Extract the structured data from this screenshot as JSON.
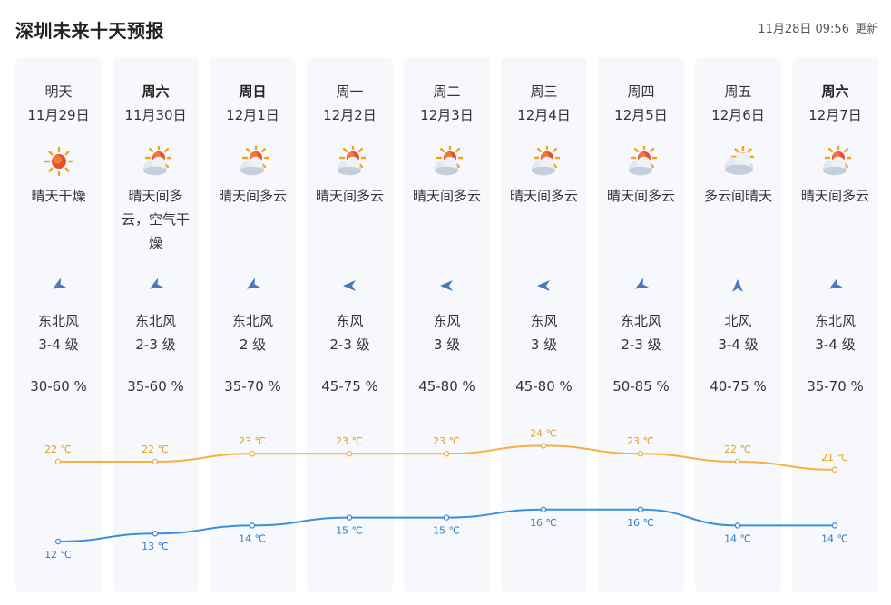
{
  "header": {
    "title": "深圳未来十天预报",
    "update_time": "11月28日 09:56",
    "update_label": "更新"
  },
  "colors": {
    "high_line": "#f5b041",
    "low_line": "#3b8fe0",
    "high_label": "#e0a020",
    "low_label": "#2a7fd0",
    "column_bg": "#f6f8fc"
  },
  "days": [
    {
      "weekday": "明天",
      "weekday_bold": false,
      "date": "11月29日",
      "icon": "sunny-icon",
      "desc": "晴天干燥",
      "wind_icon": "wind-arrow-northeast-icon",
      "wind_dir": "东北风",
      "wind_level": "3-4 级",
      "humidity": "30-60 %",
      "high": 22,
      "high_label": "22 ℃",
      "low": 12,
      "low_label": "12 ℃"
    },
    {
      "weekday": "周六",
      "weekday_bold": true,
      "date": "11月30日",
      "icon": "partly-cloudy-icon",
      "desc": "晴天间多云，空气干燥",
      "wind_icon": "wind-arrow-northeast-icon",
      "wind_dir": "东北风",
      "wind_level": "2-3 级",
      "humidity": "35-60 %",
      "high": 22,
      "high_label": "22 ℃",
      "low": 13,
      "low_label": "13 ℃"
    },
    {
      "weekday": "周日",
      "weekday_bold": true,
      "date": "12月1日",
      "icon": "partly-cloudy-icon",
      "desc": "晴天间多云",
      "wind_icon": "wind-arrow-northeast-icon",
      "wind_dir": "东北风",
      "wind_level": "2 级",
      "humidity": "35-70 %",
      "high": 23,
      "high_label": "23 ℃",
      "low": 14,
      "low_label": "14 ℃"
    },
    {
      "weekday": "周一",
      "weekday_bold": false,
      "date": "12月2日",
      "icon": "partly-cloudy-icon",
      "desc": "晴天间多云",
      "wind_icon": "wind-arrow-east-icon",
      "wind_dir": "东风",
      "wind_level": "2-3 级",
      "humidity": "45-75 %",
      "high": 23,
      "high_label": "23 ℃",
      "low": 15,
      "low_label": "15 ℃"
    },
    {
      "weekday": "周二",
      "weekday_bold": false,
      "date": "12月3日",
      "icon": "partly-cloudy-icon",
      "desc": "晴天间多云",
      "wind_icon": "wind-arrow-east-icon",
      "wind_dir": "东风",
      "wind_level": "3 级",
      "humidity": "45-80 %",
      "high": 23,
      "high_label": "23 ℃",
      "low": 15,
      "low_label": "15 ℃"
    },
    {
      "weekday": "周三",
      "weekday_bold": false,
      "date": "12月4日",
      "icon": "partly-cloudy-icon",
      "desc": "晴天间多云",
      "wind_icon": "wind-arrow-east-icon",
      "wind_dir": "东风",
      "wind_level": "3 级",
      "humidity": "45-80 %",
      "high": 24,
      "high_label": "24 ℃",
      "low": 16,
      "low_label": "16 ℃"
    },
    {
      "weekday": "周四",
      "weekday_bold": false,
      "date": "12月5日",
      "icon": "partly-cloudy-icon",
      "desc": "晴天间多云",
      "wind_icon": "wind-arrow-northeast-icon",
      "wind_dir": "东北风",
      "wind_level": "2-3 级",
      "humidity": "50-85 %",
      "high": 23,
      "high_label": "23 ℃",
      "low": 16,
      "low_label": "16 ℃"
    },
    {
      "weekday": "周五",
      "weekday_bold": false,
      "date": "12月6日",
      "icon": "cloudy-sunny-icon",
      "desc": "多云间晴天",
      "wind_icon": "wind-arrow-north-icon",
      "wind_dir": "北风",
      "wind_level": "3-4 级",
      "humidity": "40-75 %",
      "high": 22,
      "high_label": "22 ℃",
      "low": 14,
      "low_label": "14 ℃"
    },
    {
      "weekday": "周六",
      "weekday_bold": true,
      "date": "12月7日",
      "icon": "partly-cloudy-icon",
      "desc": "晴天间多云",
      "wind_icon": "wind-arrow-northeast-icon",
      "wind_dir": "东北风",
      "wind_level": "3-4 级",
      "humidity": "35-70 %",
      "high": 21,
      "high_label": "21 ℃",
      "low": 14,
      "low_label": "14 ℃"
    }
  ]
}
